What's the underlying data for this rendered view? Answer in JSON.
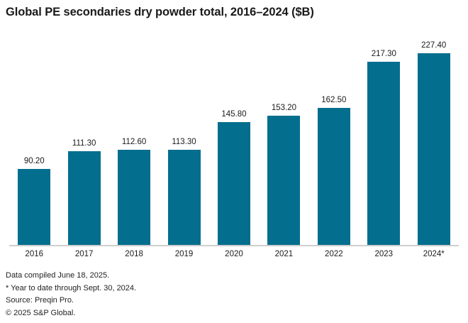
{
  "title": "Global PE secondaries dry powder total, 2016–2024 ($B)",
  "chart_data": {
    "type": "bar",
    "title": "Global PE secondaries dry powder total, 2016–2024 ($B)",
    "categories": [
      "2016",
      "2017",
      "2018",
      "2019",
      "2020",
      "2021",
      "2022",
      "2023",
      "2024*"
    ],
    "values": [
      90.2,
      111.3,
      112.6,
      113.3,
      145.8,
      153.2,
      162.5,
      217.3,
      227.4
    ],
    "value_labels": [
      "90.20",
      "111.30",
      "112.60",
      "113.30",
      "145.80",
      "153.20",
      "162.50",
      "217.30",
      "227.40"
    ],
    "xlabel": "",
    "ylabel": "",
    "ylim": [
      0,
      240
    ],
    "grid": false,
    "legend": false,
    "data_labels": true,
    "bar_color": "#046e8e",
    "axis_line_color": "#cfcfcf",
    "label_color": "#1a1a1a"
  },
  "footnotes": [
    "Data compiled June 18, 2025.",
    "* Year to date through Sept. 30, 2024.",
    "Source: Preqin Pro.",
    "© 2025 S&P Global."
  ]
}
